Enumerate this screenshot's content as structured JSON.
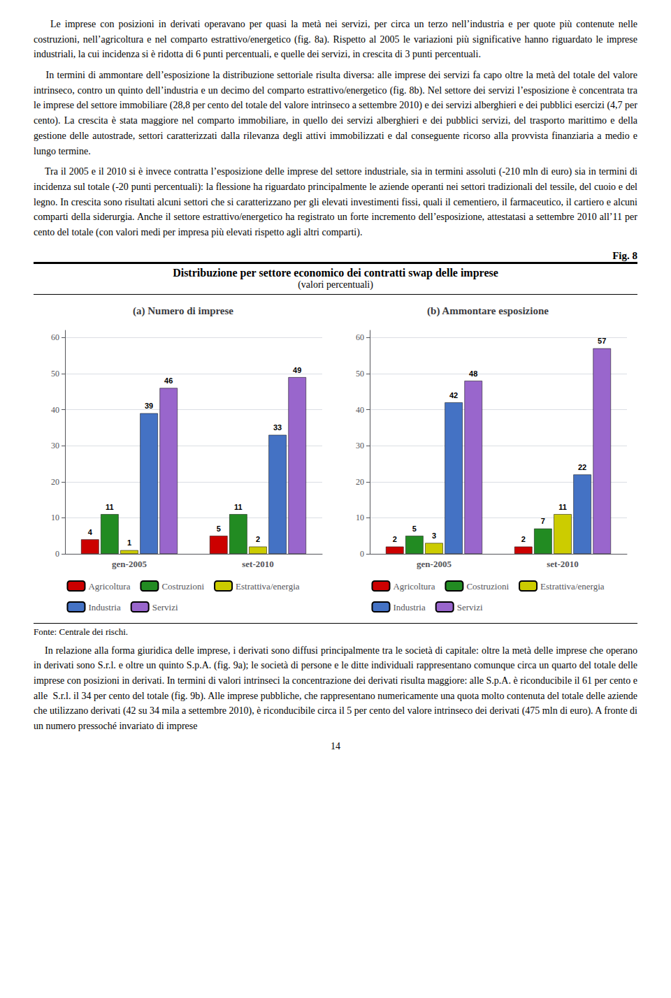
{
  "body_text_1": "    Le imprese con posizioni in derivati operavano per quasi la metà nei servizi, per circa un terzo nell’industria e per quote più contenute nelle costruzioni, nell’agricoltura e nel comparto estrattivo/energetico (fig. 8a). Rispetto al 2005 le variazioni più significative hanno riguardato le imprese industriali, la cui incidenza si è ridotta di 6 punti percentuali, e quelle dei servizi, in crescita di 3 punti percentuali.",
  "body_text_2": "    In termini di ammontare dell’esposizione la distribuzione settoriale risulta diversa: alle imprese dei servizi fa capo oltre la metà del totale del valore intrinseco, contro un quinto dell’industria e un decimo del comparto estrattivo/energetico (fig. 8b). Nel settore dei servizi l’esposizione è concentrata tra le imprese del settore immobiliare (28,8 per cento del totale del valore intrinseco a settembre 2010) e dei servizi alberghieri e dei pubblici esercizi (4,7 per cento). La crescita è stata maggiore nel comparto immobiliare, in quello dei servizi alberghieri e dei pubblici servizi, del trasporto marittimo e della gestione delle autostrade, settori caratterizzati dalla rilevanza degli attivi immobilizzati e dal conseguente ricorso alla provvista finanziaria a medio e lungo termine.",
  "body_text_3": "    Tra il 2005 e il 2010 si è invece contratta l’esposizione delle imprese del settore industriale, sia in termini assoluti (-210 mln di euro) sia in termini di incidenza sul totale (-20 punti percentuali): la flessione ha riguardato principalmente le aziende operanti nei settori tradizionali del tessile, del cuoio e del legno. In crescita sono risultati alcuni settori che si caratterizzano per gli elevati investimenti fissi, quali il cementiero, il farmaceutico, il cartiero e alcuni comparti della siderurgia. Anche il settore estrattivo/energetico ha registrato un forte incremento dell’esposizione, attestatasi a settembre 2010 all’11 per cento del totale (con valori medi per impresa più elevati rispetto agli altri comparti).",
  "fig_label": "Fig. 8",
  "title": "Distribuzione per settore economico dei contratti swap delle imprese",
  "subtitle": "(valori percentuali)",
  "chart_data": [
    {
      "type": "bar",
      "title": "(a) Numero di imprese",
      "categories": [
        "gen-2005",
        "set-2010"
      ],
      "series": [
        {
          "name": "Agricoltura",
          "color": "#cc0000",
          "values": [
            4,
            5
          ]
        },
        {
          "name": "Costruzioni",
          "color": "#228B22",
          "values": [
            11,
            11
          ]
        },
        {
          "name": "Estrattiva/energia",
          "color": "#cccc00",
          "values": [
            1,
            2
          ]
        },
        {
          "name": "Industria",
          "color": "#4472C4",
          "values": [
            39,
            33
          ]
        },
        {
          "name": "Servizi",
          "color": "#9966CC",
          "values": [
            46,
            49
          ]
        }
      ],
      "ylim": [
        0,
        62
      ],
      "yticks": [
        0,
        10,
        20,
        30,
        40,
        50,
        60
      ],
      "grid": true,
      "data_labels": true,
      "legend": "bottom"
    },
    {
      "type": "bar",
      "title": "(b) Ammontare esposizione",
      "categories": [
        "gen-2005",
        "set-2010"
      ],
      "series": [
        {
          "name": "Agricoltura",
          "color": "#cc0000",
          "values": [
            2,
            2
          ]
        },
        {
          "name": "Costruzioni",
          "color": "#228B22",
          "values": [
            5,
            7
          ]
        },
        {
          "name": "Estrattiva/energia",
          "color": "#cccc00",
          "values": [
            3,
            11
          ]
        },
        {
          "name": "Industria",
          "color": "#4472C4",
          "values": [
            42,
            22
          ]
        },
        {
          "name": "Servizi",
          "color": "#9966CC",
          "values": [
            48,
            57
          ]
        }
      ],
      "ylim": [
        0,
        62
      ],
      "yticks": [
        0,
        10,
        20,
        30,
        40,
        50,
        60
      ],
      "grid": true,
      "data_labels": true,
      "legend": "bottom"
    }
  ],
  "source": "Fonte: Centrale dei rischi.",
  "body_text_4": "    In relazione alla forma giuridica delle imprese, i derivati sono diffusi principalmente tra le società di capitale: oltre la metà delle imprese che operano in derivati sono S.r.l. e oltre un quinto S.p.A. (fig. 9a); le società di persone e le ditte individuali rappresentano comunque circa un quarto del totale delle imprese con posizioni in derivati. In termini di valori intrinseci la concentrazione dei derivati risulta maggiore: alle S.p.A. è riconducibile il 61 per cento e alle  S.r.l. il 34 per cento del totale (fig. 9b). Alle imprese pubbliche, che rappresentano numericamente una quota molto contenuta del totale delle aziende che utilizzano derivati (42 su 34 mila a settembre 2010), è riconducibile circa il 5 per cento del valore intrinseco dei derivati (475 mln di euro). A fronte di un numero pressoché invariato di imprese",
  "page_number": "14"
}
